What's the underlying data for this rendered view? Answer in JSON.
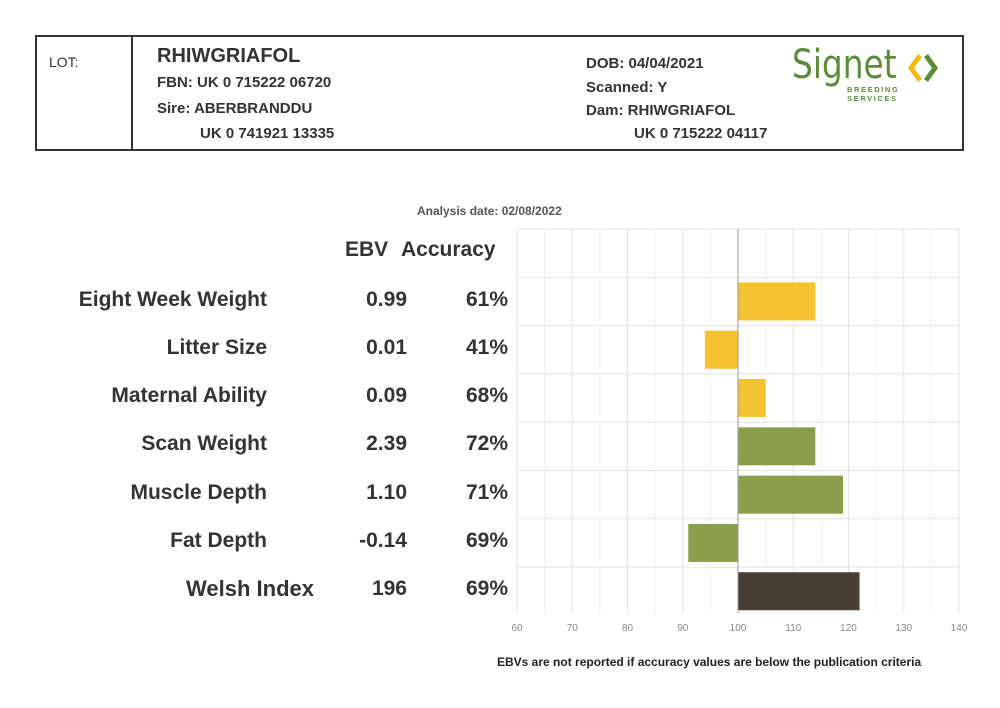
{
  "header": {
    "lot_label": "LOT:",
    "animal_name": "RHIWGRIAFOL",
    "fbn": "FBN: UK 0 715222 06720",
    "sire_line": "Sire: ABERBRANDDU",
    "sire_id": "UK 0 741921 13335",
    "dob": "DOB: 04/04/2021",
    "scanned": "Scanned: Y",
    "dam_line": "Dam: RHIWGRIAFOL",
    "dam_id": "UK 0 715222 04117",
    "logo": {
      "word": "Signet",
      "tagline": "BREEDING SERVICES",
      "brand_color": "#5b8c3a",
      "accent_color": "#f2b90f"
    }
  },
  "analysis_date": "Analysis date: 02/08/2022",
  "column_headers": {
    "ebv": "EBV",
    "accuracy": "Accuracy"
  },
  "traits": [
    {
      "label": "Eight Week Weight",
      "ebv": "0.99",
      "accuracy": "61%"
    },
    {
      "label": "Litter Size",
      "ebv": "0.01",
      "accuracy": "41%"
    },
    {
      "label": "Maternal Ability",
      "ebv": "0.09",
      "accuracy": "68%"
    },
    {
      "label": "Scan Weight",
      "ebv": "2.39",
      "accuracy": "72%"
    },
    {
      "label": "Muscle Depth",
      "ebv": "1.10",
      "accuracy": "71%"
    },
    {
      "label": "Fat Depth",
      "ebv": "-0.14",
      "accuracy": "69%"
    },
    {
      "label": "Welsh Index",
      "ebv": "196",
      "accuracy": "69%"
    }
  ],
  "footnote": "EBVs are not reported if accuracy values are below the publication criteria",
  "chart_data": {
    "type": "bar",
    "orientation": "horizontal",
    "baseline": 100,
    "xlim": [
      60,
      140
    ],
    "xticks": [
      "60",
      "70",
      "80",
      "90",
      "100",
      "110",
      "120",
      "130",
      "140"
    ],
    "categories": [
      "Eight Week Weight",
      "Litter Size",
      "Maternal Ability",
      "Scan Weight",
      "Muscle Depth",
      "Fat Depth",
      "Welsh Index"
    ],
    "values": [
      114,
      94,
      105,
      114,
      119,
      91,
      122
    ],
    "bar_colors": [
      "#f5c330",
      "#f5c330",
      "#f5c330",
      "#8a9e4c",
      "#8a9e4c",
      "#8a9e4c",
      "#4a3f33"
    ],
    "grid": true
  }
}
